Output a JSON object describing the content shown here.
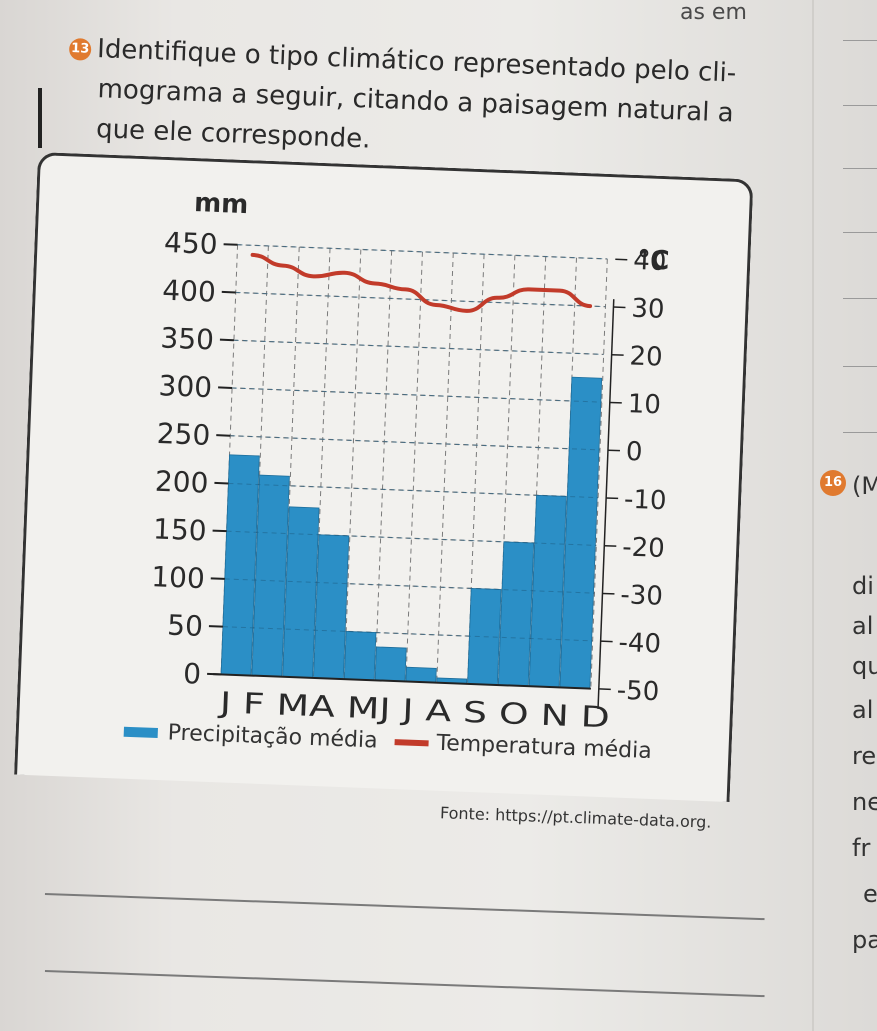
{
  "page": {
    "top_fragment": "as em",
    "question_number": "13",
    "question_lines": [
      "Identifique o tipo climático representado pelo cli-",
      "mograma a seguir, citando a paisagem natural a",
      "que ele corresponde."
    ],
    "source": "Fonte: https://pt.climate-data.org.",
    "right_badge": "16",
    "right_fragments": [
      "(M",
      "di",
      "al",
      "qu",
      "al",
      "re",
      "ne",
      "fr",
      "e",
      "pa"
    ]
  },
  "colors": {
    "bar": "#2b8fc6",
    "bar_edge": "#1d6e9c",
    "line": "#c23b2a",
    "grid": "#7a7a7a"
  },
  "chart_data": {
    "type": "bar",
    "categories": [
      "J",
      "F",
      "M",
      "A",
      "M",
      "J",
      "J",
      "A",
      "S",
      "O",
      "N",
      "D"
    ],
    "category_label": "J F MA MJ J A S O N D",
    "series": [
      {
        "name": "Precipitação média",
        "kind": "bar",
        "axis": "left",
        "values": [
          230,
          210,
          178,
          150,
          50,
          35,
          15,
          5,
          100,
          150,
          200,
          325
        ]
      },
      {
        "name": "Temperatura média",
        "kind": "line",
        "axis": "right",
        "values": [
          38,
          36,
          34,
          35,
          33,
          32,
          29,
          28,
          31,
          33,
          33,
          30
        ]
      }
    ],
    "left_axis": {
      "label": "mm",
      "min": 0,
      "max": 450,
      "ticks": [
        "0",
        "50",
        "100",
        "150",
        "200",
        "250",
        "300",
        "350",
        "400",
        "450"
      ]
    },
    "right_axis": {
      "label": "°C",
      "min": -50,
      "max": 40,
      "ticks": [
        "-50",
        "-40",
        "-30",
        "-20",
        "-10",
        "0",
        "10",
        "20",
        "30",
        "40"
      ]
    },
    "grid": true,
    "legend_position": "bottom"
  }
}
